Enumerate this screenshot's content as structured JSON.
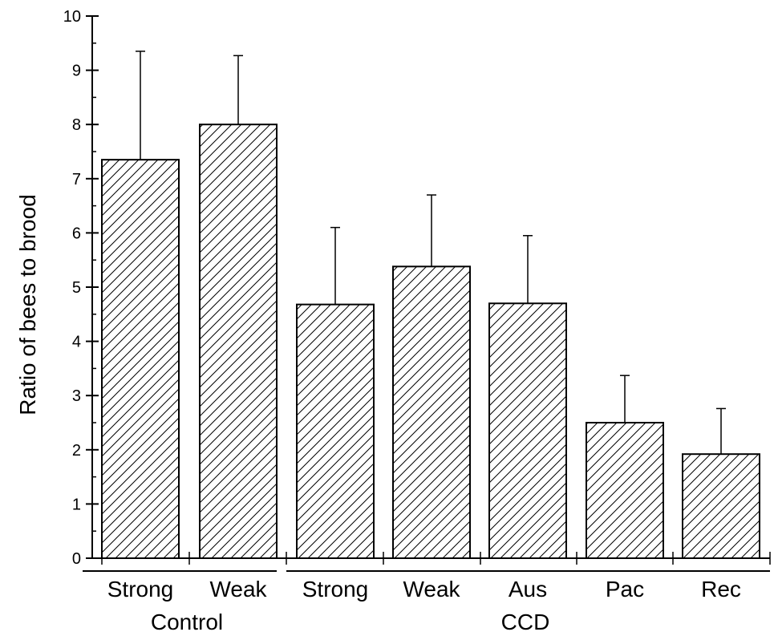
{
  "chart_data": {
    "type": "bar",
    "title": "",
    "xlabel": "",
    "ylabel": "Ratio of bees to brood",
    "ylim": [
      0,
      10
    ],
    "yticks": [
      0,
      1,
      2,
      3,
      4,
      5,
      6,
      7,
      8,
      9,
      10
    ],
    "grid": false,
    "legend": "none",
    "fill_pattern": "diagonal-hatch",
    "colors": {
      "bar_fill": "#ffffff",
      "bar_stroke": "#000000",
      "hatch": "#000000",
      "background": "#ffffff"
    },
    "groups": [
      {
        "name": "Control",
        "categories": [
          "Strong",
          "Weak"
        ]
      },
      {
        "name": "CCD",
        "categories": [
          "Strong",
          "Weak",
          "Aus",
          "Pac",
          "Rec"
        ]
      }
    ],
    "categories": [
      "Strong",
      "Weak",
      "Strong",
      "Weak",
      "Aus",
      "Pac",
      "Rec"
    ],
    "values": [
      7.35,
      8.0,
      4.68,
      5.38,
      4.7,
      2.5,
      1.92
    ],
    "error_upper": [
      9.35,
      9.27,
      6.1,
      6.7,
      5.95,
      3.37,
      2.76
    ]
  }
}
